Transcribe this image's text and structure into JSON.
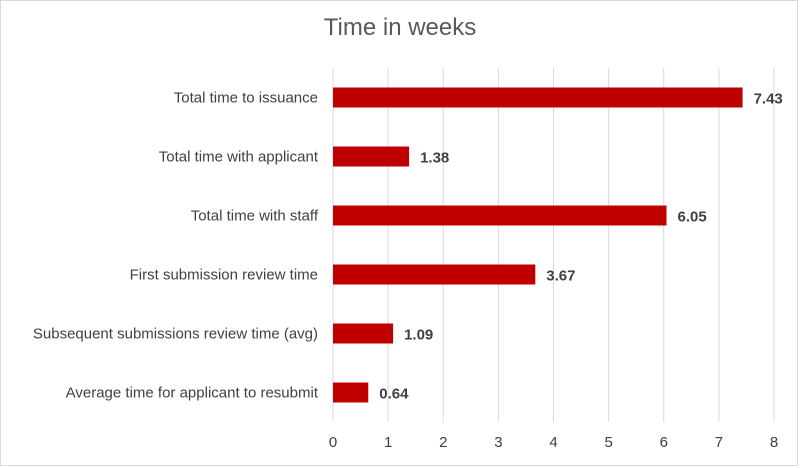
{
  "chart_data": {
    "type": "bar",
    "orientation": "horizontal",
    "title": "Time in weeks",
    "xlabel": "",
    "ylabel": "",
    "categories": [
      "Total time to issuance",
      "Total time with applicant",
      "Total time with staff",
      "First submission review time",
      "Subsequent submissions review time (avg)",
      "Average time for applicant to resubmit"
    ],
    "values": [
      7.43,
      1.38,
      6.05,
      3.67,
      1.09,
      0.64
    ],
    "data_labels": [
      "7.43",
      "1.38",
      "6.05",
      "3.67",
      "1.09",
      "0.64"
    ],
    "xlim": [
      0,
      8
    ],
    "ticks": [
      "0",
      "1",
      "2",
      "3",
      "4",
      "5",
      "6",
      "7",
      "8"
    ],
    "bar_color": "#c00000",
    "grid": "vertical",
    "legend": "none"
  }
}
